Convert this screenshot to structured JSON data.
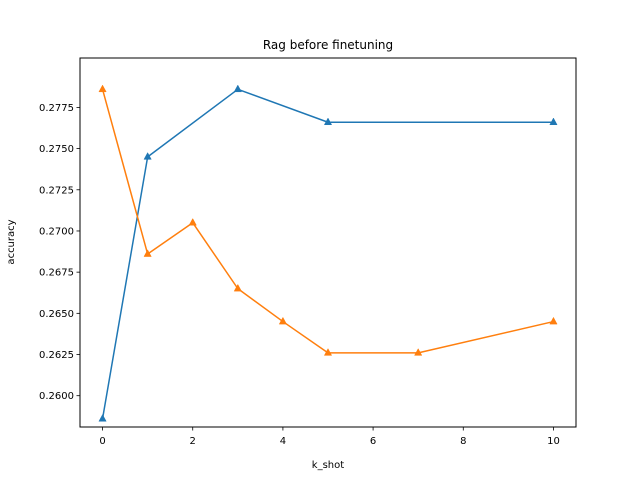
{
  "chart_data": {
    "type": "line",
    "title": "Rag before finetuning",
    "xlabel": "k_shot",
    "ylabel": "accuracy",
    "xlim": [
      -0.5,
      10.5
    ],
    "ylim": [
      0.2581,
      0.2805
    ],
    "x_ticks": [
      0,
      2,
      4,
      6,
      8,
      10
    ],
    "x_tick_labels": [
      "0",
      "2",
      "4",
      "6",
      "8",
      "10"
    ],
    "y_ticks": [
      0.26,
      0.2625,
      0.265,
      0.2675,
      0.27,
      0.2725,
      0.275,
      0.2775
    ],
    "y_tick_labels": [
      "0.2600",
      "0.2625",
      "0.2650",
      "0.2675",
      "0.2700",
      "0.2725",
      "0.2750",
      "0.2775"
    ],
    "grid": false,
    "legend": null,
    "marker": "triangle-up",
    "series": [
      {
        "color": "#1f77b4",
        "x": [
          0,
          1,
          3,
          5,
          10
        ],
        "y": [
          0.2586,
          0.2745,
          0.2786,
          0.2766,
          0.2766
        ]
      },
      {
        "color": "#ff7f0e",
        "x": [
          0,
          1,
          2,
          3,
          4,
          5,
          7,
          10
        ],
        "y": [
          0.2786,
          0.2686,
          0.2705,
          0.2665,
          0.2645,
          0.2626,
          0.2626,
          0.2645
        ]
      }
    ]
  }
}
